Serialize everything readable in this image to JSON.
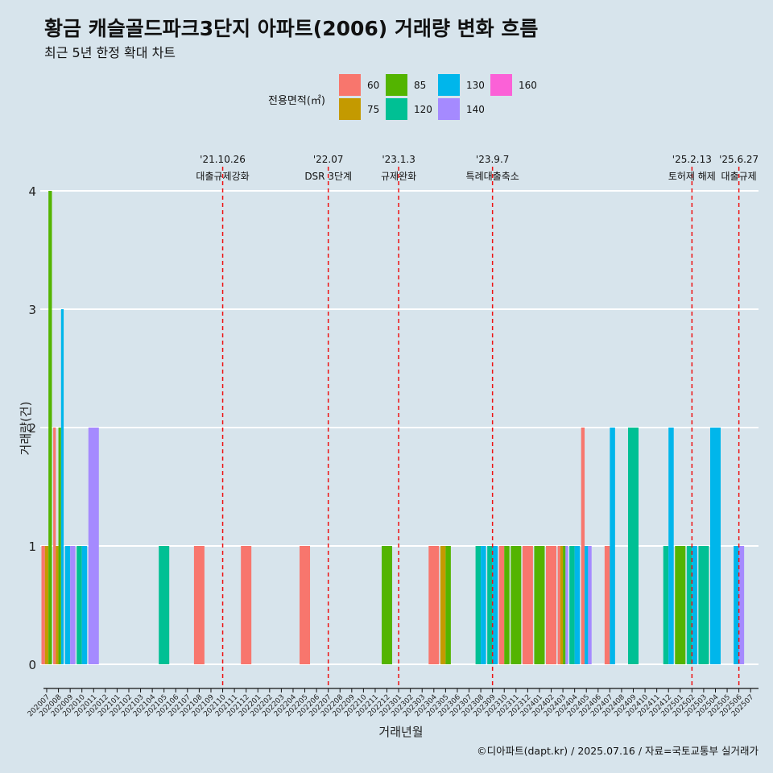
{
  "title": "황금 캐슬골드파크3단지 아파트(2006) 거래량 변화 흐름",
  "subtitle": "최근 5년 한정 확대 차트",
  "caption": "©디아파트(dapt.kr) / 2025.07.16 / 자료=국토교통부 실거래가",
  "legend_title": "전용면적(㎡)",
  "colors": {
    "60": "#f8766d",
    "75": "#c49a00",
    "85": "#53b400",
    "120": "#00c094",
    "130": "#00b6eb",
    "140": "#a58aff",
    "160": "#fb61d7"
  },
  "chart_data": {
    "type": "bar",
    "xlabel": "거래년월",
    "ylabel": "거래량(건)",
    "ylim": [
      0,
      4
    ],
    "yticks": [
      0,
      1,
      2,
      3,
      4
    ],
    "grid": true,
    "legend_position": "top",
    "categories": [
      "202007",
      "202008",
      "202009",
      "202010",
      "202011",
      "202012",
      "202101",
      "202102",
      "202103",
      "202104",
      "202105",
      "202106",
      "202107",
      "202108",
      "202109",
      "202110",
      "202111",
      "202112",
      "202201",
      "202202",
      "202203",
      "202204",
      "202205",
      "202206",
      "202207",
      "202208",
      "202209",
      "202210",
      "202211",
      "202212",
      "202301",
      "202302",
      "202303",
      "202304",
      "202305",
      "202306",
      "202307",
      "202308",
      "202309",
      "202310",
      "202311",
      "202312",
      "202401",
      "202402",
      "202403",
      "202404",
      "202405",
      "202406",
      "202407",
      "202408",
      "202409",
      "202410",
      "202411",
      "202412",
      "202501",
      "202502",
      "202503",
      "202504",
      "202505",
      "202506",
      "202507"
    ],
    "series_names": [
      "60",
      "75",
      "85",
      "120",
      "130",
      "140",
      "160"
    ],
    "bars": [
      {
        "month": "202007",
        "values": {
          "60": 1,
          "75": 1,
          "85": 4
        }
      },
      {
        "month": "202008",
        "values": {
          "60": 2,
          "75": 1,
          "85": 2,
          "130": 3
        }
      },
      {
        "month": "202009",
        "values": {
          "130": 1,
          "140": 1
        }
      },
      {
        "month": "202010",
        "values": {
          "120": 1,
          "130": 1
        }
      },
      {
        "month": "202011",
        "values": {
          "140": 2
        }
      },
      {
        "month": "202105",
        "values": {
          "120": 1
        }
      },
      {
        "month": "202108",
        "values": {
          "60": 1
        }
      },
      {
        "month": "202112",
        "values": {
          "60": 1
        }
      },
      {
        "month": "202205",
        "values": {
          "60": 1
        }
      },
      {
        "month": "202212",
        "values": {
          "85": 1
        }
      },
      {
        "month": "202304",
        "values": {
          "60": 1
        }
      },
      {
        "month": "202305",
        "values": {
          "75": 1,
          "85": 1
        }
      },
      {
        "month": "202308",
        "values": {
          "120": 1,
          "130": 1
        }
      },
      {
        "month": "202309",
        "values": {
          "120": 1,
          "130": 1
        }
      },
      {
        "month": "202310",
        "values": {
          "60": 1,
          "85": 1
        }
      },
      {
        "month": "202311",
        "values": {
          "85": 1
        }
      },
      {
        "month": "202312",
        "values": {
          "60": 1
        }
      },
      {
        "month": "202401",
        "values": {
          "85": 1
        }
      },
      {
        "month": "202402",
        "values": {
          "60": 1
        }
      },
      {
        "month": "202403",
        "values": {
          "60": 1,
          "75": 1,
          "85": 1,
          "140": 1
        }
      },
      {
        "month": "202404",
        "values": {
          "120": 1,
          "130": 1
        }
      },
      {
        "month": "202405",
        "values": {
          "60": 2,
          "130": 1,
          "140": 1
        }
      },
      {
        "month": "202407",
        "values": {
          "60": 1,
          "130": 2
        }
      },
      {
        "month": "202409",
        "values": {
          "120": 2
        }
      },
      {
        "month": "202412",
        "values": {
          "120": 1,
          "130": 2
        }
      },
      {
        "month": "202501",
        "values": {
          "85": 1
        }
      },
      {
        "month": "202502",
        "values": {
          "120": 1,
          "130": 1
        }
      },
      {
        "month": "202503",
        "values": {
          "120": 1
        }
      },
      {
        "month": "202504",
        "values": {
          "130": 2
        }
      },
      {
        "month": "202506",
        "values": {
          "130": 1,
          "140": 1
        }
      }
    ],
    "annotations": [
      {
        "month": "202110",
        "date": "'21.10.26",
        "label": "대출규제강화"
      },
      {
        "month": "202207",
        "date": "'22.07",
        "label": "DSR 3단계"
      },
      {
        "month": "202301",
        "date": "'23.1.3",
        "label": "규제완화"
      },
      {
        "month": "202309",
        "date": "'23.9.7",
        "label": "특례대출축소"
      },
      {
        "month": "202502",
        "date": "'25.2.13",
        "label": "토허제 해제"
      },
      {
        "month": "202506",
        "date": "'25.6.27",
        "label": "대출규제"
      }
    ]
  }
}
